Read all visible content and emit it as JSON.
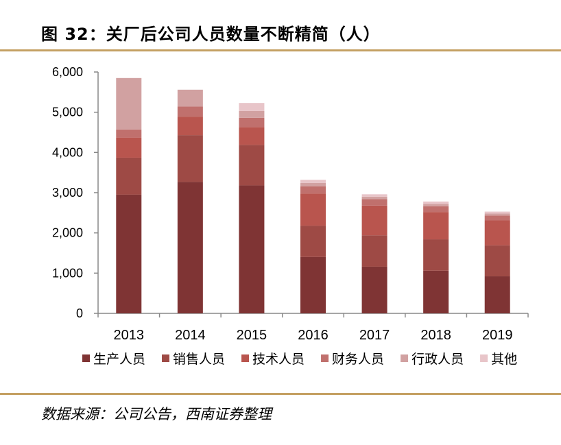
{
  "page": {
    "title": "图 32：关厂后公司人员数量不断精简（人）",
    "source": "数据来源：公司公告，西南证券整理"
  },
  "chart_data": {
    "type": "bar",
    "stacked": true,
    "categories": [
      "2013",
      "2014",
      "2015",
      "2016",
      "2017",
      "2018",
      "2019"
    ],
    "ylim": [
      0,
      6000
    ],
    "yticks": [
      0,
      1000,
      2000,
      3000,
      4000,
      5000,
      6000
    ],
    "ytick_labels": [
      "0",
      "1,000",
      "2,000",
      "3,000",
      "4,000",
      "5,000",
      "6,000"
    ],
    "legend_position": "bottom",
    "series": [
      {
        "name": "生产人员",
        "color": "#7f3434",
        "values": [
          2950,
          3270,
          3180,
          1400,
          1160,
          1060,
          920
        ]
      },
      {
        "name": "销售人员",
        "color": "#9e4a45",
        "values": [
          920,
          1160,
          1010,
          780,
          780,
          780,
          770
        ]
      },
      {
        "name": "技术人员",
        "color": "#b9554e",
        "values": [
          500,
          460,
          440,
          800,
          740,
          680,
          620
        ]
      },
      {
        "name": "财务人员",
        "color": "#c0706d",
        "values": [
          200,
          250,
          230,
          180,
          160,
          140,
          120
        ]
      },
      {
        "name": "行政人员",
        "color": "#d1a1a1",
        "values": [
          1280,
          420,
          170,
          80,
          60,
          60,
          50
        ]
      },
      {
        "name": "其他",
        "color": "#e8c5c9",
        "values": [
          0,
          0,
          200,
          80,
          60,
          60,
          50
        ]
      }
    ]
  }
}
